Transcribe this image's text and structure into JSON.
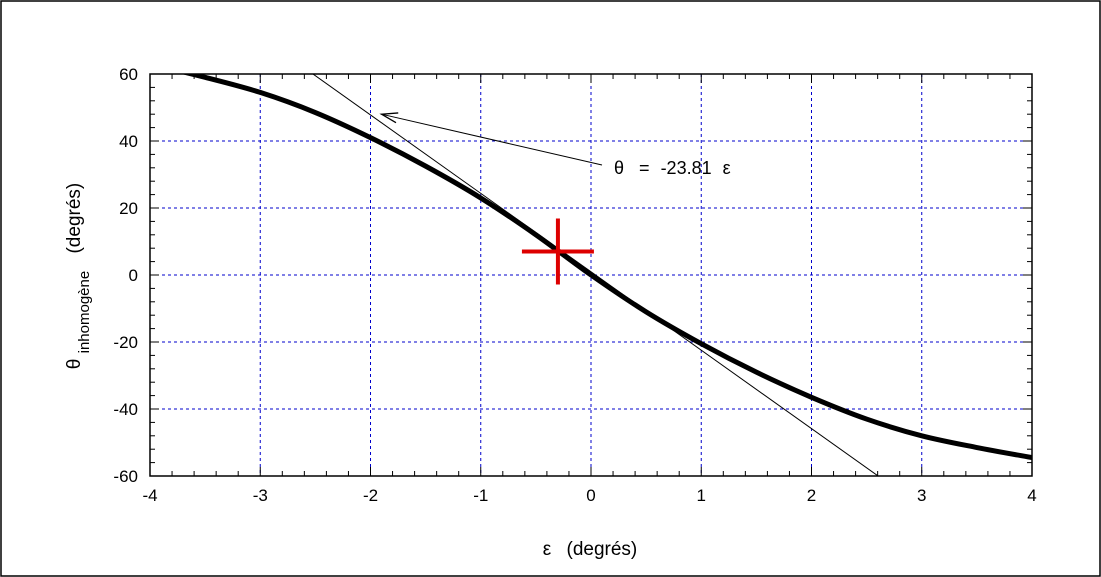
{
  "chart_data": {
    "type": "line",
    "xlabel_symbol": "ε",
    "xlabel_unit": "(degrés)",
    "ylabel_symbol": "θ",
    "ylabel_sub": "inhomogène",
    "ylabel_unit": "(degrés)",
    "xlim": [
      -4,
      4
    ],
    "ylim": [
      -60,
      60
    ],
    "x_ticks": [
      -4,
      -3,
      -2,
      -1,
      0,
      1,
      2,
      3,
      4
    ],
    "y_ticks": [
      -60,
      -40,
      -20,
      0,
      20,
      40,
      60
    ],
    "x_tick_labels": [
      "-4",
      "-3",
      "-2",
      "-1",
      "0",
      "1",
      "2",
      "3",
      "4"
    ],
    "y_tick_labels": [
      "-60",
      "-40",
      "-20",
      "0",
      "20",
      "40",
      "60"
    ],
    "grid": true,
    "grid_color": "#0000cc",
    "series": [
      {
        "style": "thick-black",
        "color": "#000000",
        "x": [
          -4,
          -3.5,
          -3,
          -2.5,
          -2,
          -1.5,
          -1,
          -0.5,
          0,
          0.5,
          1,
          1.5,
          2,
          2.5,
          3,
          3.5,
          4
        ],
        "y": [
          63,
          59,
          54.5,
          48.5,
          41,
          32.5,
          23,
          12,
          0,
          -11,
          -20.5,
          -29,
          -36.5,
          -43,
          -48,
          -51.5,
          -54.5
        ]
      },
      {
        "style": "thin-tangent",
        "color": "#000000",
        "x": [
          -2.65,
          2.6
        ],
        "y": [
          63,
          -59.9
        ]
      }
    ],
    "marker": {
      "x": -0.3,
      "y": 7,
      "color": "#dd0000",
      "shape": "cross"
    },
    "annotation": {
      "prefix": "θ",
      "equals": "=",
      "value": "-23.81",
      "suffix": "ε",
      "arrow_to": {
        "x": -1.9,
        "y": 48
      }
    }
  }
}
